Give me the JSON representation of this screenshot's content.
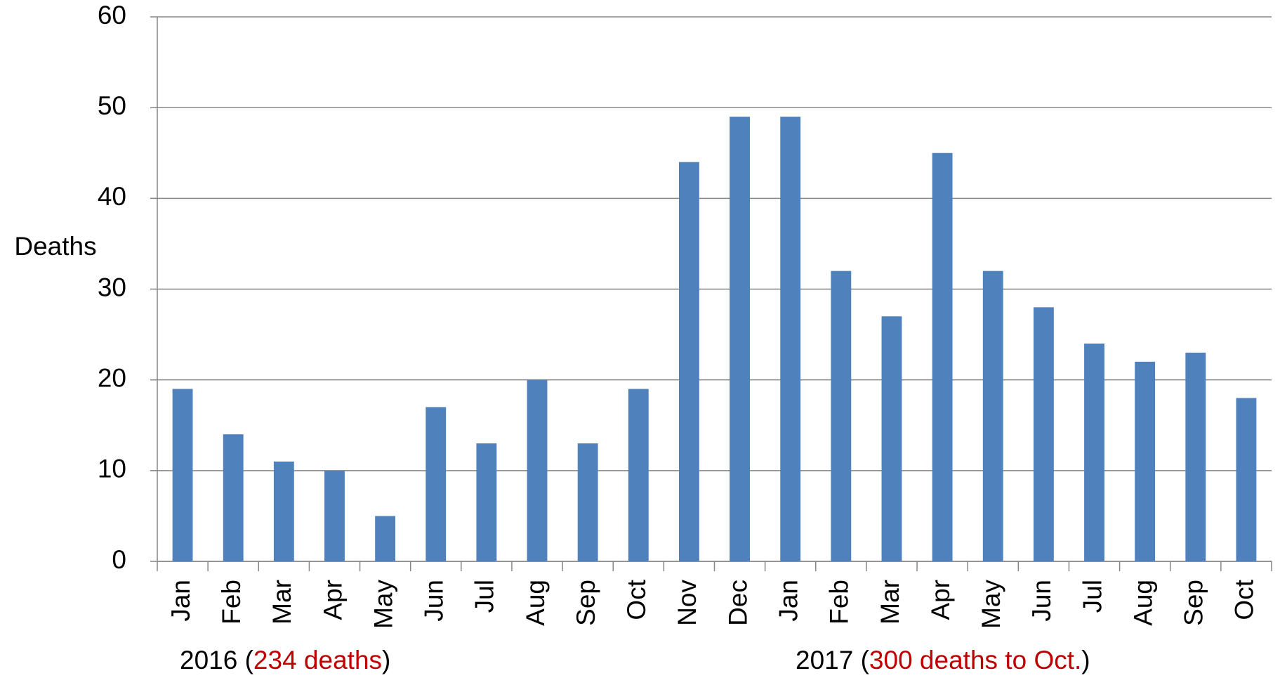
{
  "chart_data": {
    "type": "bar",
    "y_label": "Deaths",
    "categories": [
      "Jan",
      "Feb",
      "Mar",
      "Apr",
      "May",
      "Jun",
      "Jul",
      "Aug",
      "Sep",
      "Oct",
      "Nov",
      "Dec",
      "Jan",
      "Feb",
      "Mar",
      "Apr",
      "May",
      "Jun",
      "Jul",
      "Aug",
      "Sep",
      "Oct"
    ],
    "values": [
      19,
      14,
      11,
      10,
      5,
      17,
      13,
      20,
      13,
      19,
      44,
      49,
      49,
      32,
      27,
      45,
      32,
      28,
      24,
      22,
      23,
      18
    ],
    "color": "#4f81bd",
    "ylim": [
      0,
      60
    ],
    "yticks": [
      0,
      10,
      20,
      30,
      40,
      50,
      60
    ],
    "grid": true,
    "annotations": [
      [
        "2016 (",
        "234 deaths",
        ")"
      ],
      [
        "2017 (",
        "300 deaths to Oct.",
        ")"
      ]
    ],
    "annotation_highlight_color": "#c00000"
  }
}
